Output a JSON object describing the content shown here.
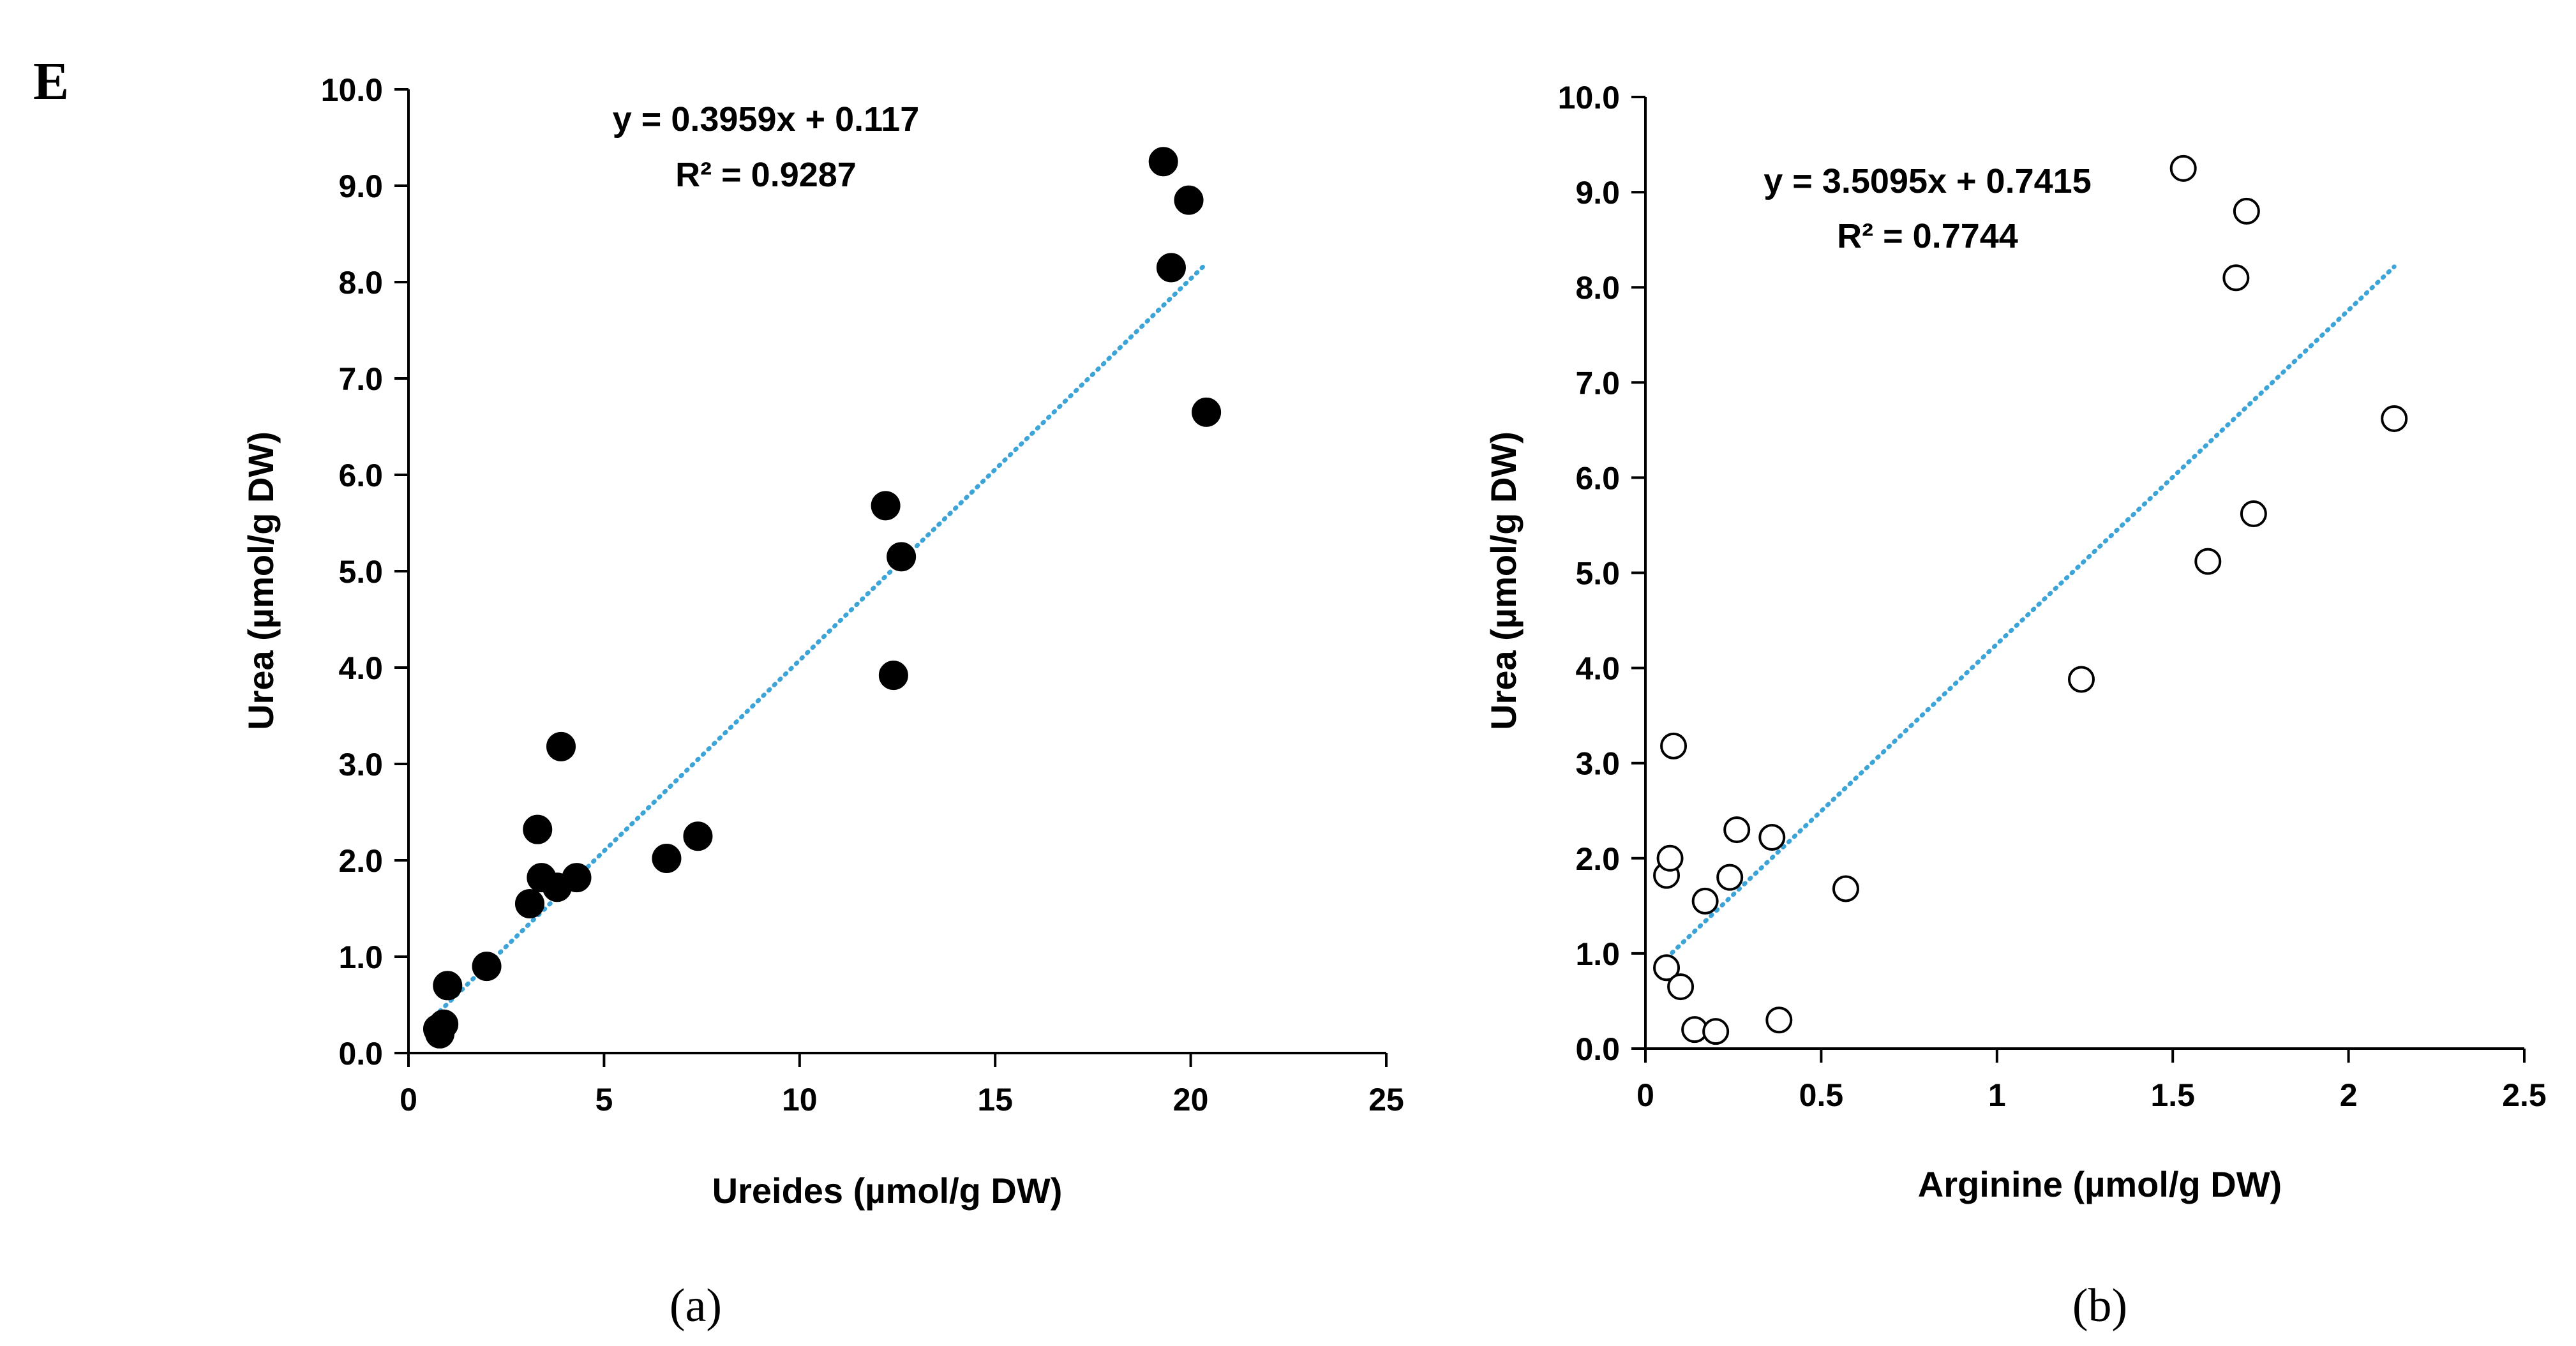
{
  "figure_letter": "E",
  "chart_data": [
    {
      "type": "scatter",
      "panel_label": "(a)",
      "title": "",
      "xlabel": "Ureides (µmol/g DW)",
      "ylabel": "Urea (µmol/g DW)",
      "xlim": [
        0,
        25
      ],
      "ylim": [
        0,
        10
      ],
      "xticks": [
        "0",
        "5",
        "10",
        "15",
        "20",
        "25"
      ],
      "yticks": [
        "0.0",
        "1.0",
        "2.0",
        "3.0",
        "4.0",
        "5.0",
        "6.0",
        "7.0",
        "8.0",
        "9.0",
        "10.0"
      ],
      "marker": "filled",
      "marker_color": "#000000",
      "trendline_color": "#3da4d8",
      "equation": "y = 0.3959x + 0.117",
      "r_squared": "R² = 0.9287",
      "trendline": {
        "slope": 0.3959,
        "intercept": 0.117,
        "x_range": [
          0.8,
          20.4
        ]
      },
      "points": [
        [
          0.75,
          0.25
        ],
        [
          0.8,
          0.2
        ],
        [
          0.9,
          0.3
        ],
        [
          1.0,
          0.7
        ],
        [
          2.0,
          0.9
        ],
        [
          3.1,
          1.55
        ],
        [
          3.3,
          2.32
        ],
        [
          3.4,
          1.82
        ],
        [
          3.8,
          1.72
        ],
        [
          3.9,
          3.18
        ],
        [
          4.3,
          1.82
        ],
        [
          6.6,
          2.02
        ],
        [
          7.4,
          2.25
        ],
        [
          12.2,
          5.68
        ],
        [
          12.4,
          3.92
        ],
        [
          12.6,
          5.15
        ],
        [
          19.3,
          9.25
        ],
        [
          19.5,
          8.15
        ],
        [
          19.95,
          8.85
        ],
        [
          20.4,
          6.65
        ]
      ]
    },
    {
      "type": "scatter",
      "panel_label": "(b)",
      "title": "",
      "xlabel": "Arginine (µmol/g DW)",
      "ylabel": "Urea (µmol/g DW)",
      "xlim": [
        0,
        2.5
      ],
      "ylim": [
        0,
        10
      ],
      "xticks": [
        "0",
        "0.5",
        "1",
        "1.5",
        "2",
        "2.5"
      ],
      "yticks": [
        "0.0",
        "1.0",
        "2.0",
        "3.0",
        "4.0",
        "5.0",
        "6.0",
        "7.0",
        "8.0",
        "9.0",
        "10.0"
      ],
      "marker": "open",
      "marker_color": "#000000",
      "trendline_color": "#3da4d8",
      "equation": "y = 3.5095x + 0.7415",
      "r_squared": "R² = 0.7744",
      "trendline": {
        "slope": 3.5095,
        "intercept": 0.7415,
        "x_range": [
          0.06,
          2.13
        ]
      },
      "points": [
        [
          0.06,
          0.85
        ],
        [
          0.06,
          1.82
        ],
        [
          0.07,
          2.0
        ],
        [
          0.08,
          3.18
        ],
        [
          0.1,
          0.65
        ],
        [
          0.14,
          0.2
        ],
        [
          0.17,
          1.55
        ],
        [
          0.2,
          0.18
        ],
        [
          0.24,
          1.8
        ],
        [
          0.26,
          2.3
        ],
        [
          0.36,
          2.22
        ],
        [
          0.38,
          0.3
        ],
        [
          0.57,
          1.68
        ],
        [
          1.24,
          3.88
        ],
        [
          1.53,
          9.25
        ],
        [
          1.6,
          5.12
        ],
        [
          1.68,
          8.1
        ],
        [
          1.71,
          8.8
        ],
        [
          1.73,
          5.62
        ],
        [
          2.13,
          6.62
        ]
      ]
    }
  ]
}
